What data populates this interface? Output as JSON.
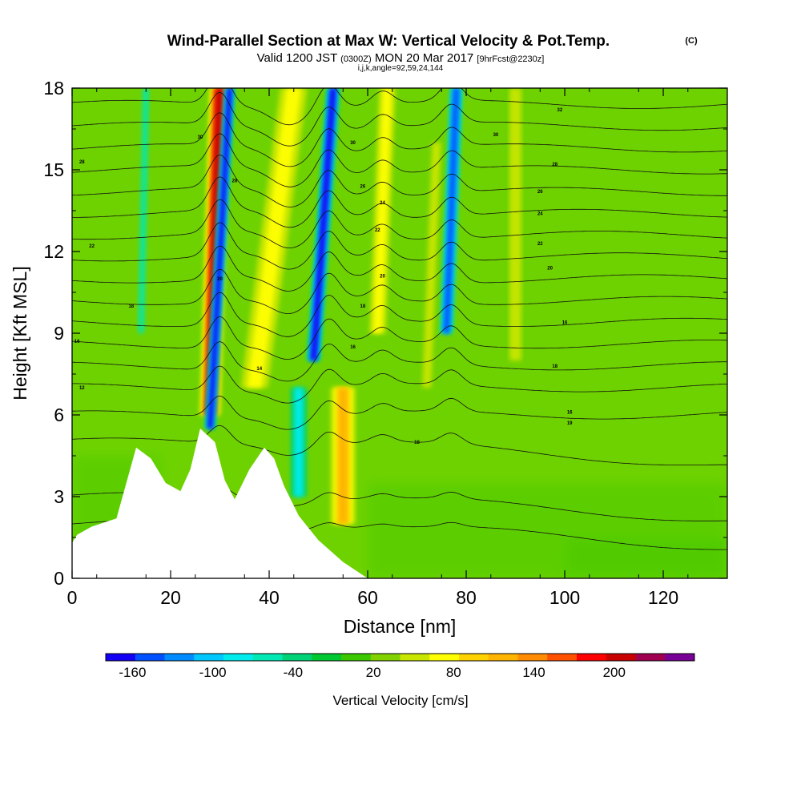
{
  "header": {
    "title": "Wind-Parallel Section at Max W: Vertical Velocity & Pot.Temp.",
    "copyright": "(C)",
    "subtitle_a": "Valid 1200 JST",
    "subtitle_b": "(0300Z)",
    "subtitle_c": "MON 20 Mar 2017",
    "subtitle_d": "[9hrFcst@2230z]",
    "indices": "i,j,k,angle=92,59,24,144"
  },
  "chart_data": {
    "type": "heatmap",
    "xlabel": "Distance [nm]",
    "ylabel": "Height [Kft MSL]",
    "xlim": [
      0,
      133
    ],
    "ylim": [
      0,
      18
    ],
    "xticks": [
      0,
      20,
      40,
      60,
      80,
      100,
      120
    ],
    "yticks": [
      0,
      3,
      6,
      9,
      12,
      15,
      18
    ],
    "grid": false,
    "colorbar": {
      "label": "Vertical Velocity [cm/s]",
      "ticks": [
        -160,
        -100,
        -40,
        20,
        80,
        140,
        200
      ],
      "range": [
        -180,
        260
      ],
      "colors": [
        "#1400f5",
        "#0050ff",
        "#008cff",
        "#00c8ff",
        "#00ecec",
        "#00e8b4",
        "#00d278",
        "#00c832",
        "#3cc800",
        "#82d200",
        "#c8e600",
        "#ffff00",
        "#ffd200",
        "#ffb400",
        "#ff8c00",
        "#ff5000",
        "#ff0000",
        "#c80000",
        "#a00050",
        "#780096"
      ]
    },
    "terrain": [
      [
        0,
        1.3
      ],
      [
        1,
        1.6
      ],
      [
        4,
        1.9
      ],
      [
        9,
        2.2
      ],
      [
        11,
        3.5
      ],
      [
        13,
        4.8
      ],
      [
        16,
        4.4
      ],
      [
        19,
        3.5
      ],
      [
        22,
        3.2
      ],
      [
        24,
        4.0
      ],
      [
        26,
        5.5
      ],
      [
        29,
        5.0
      ],
      [
        31,
        3.6
      ],
      [
        33,
        2.9
      ],
      [
        36,
        4.0
      ],
      [
        39,
        4.8
      ],
      [
        41,
        4.4
      ],
      [
        43,
        3.4
      ],
      [
        46,
        2.3
      ],
      [
        50,
        1.4
      ],
      [
        55,
        0.6
      ],
      [
        60,
        0.0
      ],
      [
        133,
        0.0
      ]
    ],
    "updrafts": [
      {
        "x0": 30,
        "y0": 18,
        "x1": 28,
        "y1": 6,
        "w": 3.0,
        "value": 200
      },
      {
        "x0": 45,
        "y0": 18,
        "x1": 37,
        "y1": 7,
        "w": 5.0,
        "value": 80
      },
      {
        "x0": 55,
        "y0": 7,
        "x1": 55,
        "y1": 2,
        "w": 4.0,
        "value": 120
      },
      {
        "x0": 64,
        "y0": 18,
        "x1": 62,
        "y1": 9,
        "w": 3.0,
        "value": 80
      },
      {
        "x0": 74,
        "y0": 16,
        "x1": 72,
        "y1": 7,
        "w": 3.0,
        "value": 60
      },
      {
        "x0": 90,
        "y0": 18,
        "x1": 90,
        "y1": 8,
        "w": 4.0,
        "value": 40
      }
    ],
    "downdrafts": [
      {
        "x0": 32,
        "y0": 18,
        "x1": 28,
        "y1": 5.5,
        "w": 1.5,
        "value": -160
      },
      {
        "x0": 53,
        "y0": 18,
        "x1": 49,
        "y1": 8,
        "w": 2.0,
        "value": -160
      },
      {
        "x0": 78,
        "y0": 18,
        "x1": 76,
        "y1": 9,
        "w": 2.0,
        "value": -140
      },
      {
        "x0": 15,
        "y0": 18,
        "x1": 14,
        "y1": 9,
        "w": 2.0,
        "value": -60
      },
      {
        "x0": 46,
        "y0": 7,
        "x1": 46,
        "y1": 3,
        "w": 3.0,
        "value": -80
      }
    ],
    "isentropes": {
      "levels_kft": [
        2.0,
        3.0,
        5.0,
        6.0,
        7.0,
        7.8,
        8.6,
        9.4,
        10.2,
        11.0,
        11.8,
        12.6,
        13.4,
        14.2,
        15.0,
        15.8,
        16.6,
        17.4
      ],
      "labels": [
        {
          "text": "18",
          "x": 70,
          "y": 5.0
        },
        {
          "text": "19",
          "x": 101,
          "y": 5.7
        },
        {
          "text": "16",
          "x": 101,
          "y": 6.1
        },
        {
          "text": "12",
          "x": 2,
          "y": 7.0
        },
        {
          "text": "14",
          "x": 38,
          "y": 7.7
        },
        {
          "text": "18",
          "x": 98,
          "y": 7.8
        },
        {
          "text": "16",
          "x": 1,
          "y": 8.7
        },
        {
          "text": "16",
          "x": 57,
          "y": 8.5
        },
        {
          "text": "16",
          "x": 100,
          "y": 9.4
        },
        {
          "text": "18",
          "x": 12,
          "y": 10.0
        },
        {
          "text": "18",
          "x": 59,
          "y": 10.0
        },
        {
          "text": "20",
          "x": 30,
          "y": 11.0
        },
        {
          "text": "20",
          "x": 63,
          "y": 11.1
        },
        {
          "text": "20",
          "x": 97,
          "y": 11.4
        },
        {
          "text": "22",
          "x": 4,
          "y": 12.2
        },
        {
          "text": "22",
          "x": 62,
          "y": 12.8
        },
        {
          "text": "22",
          "x": 95,
          "y": 12.3
        },
        {
          "text": "24",
          "x": 95,
          "y": 13.4
        },
        {
          "text": "24",
          "x": 63,
          "y": 13.8
        },
        {
          "text": "26",
          "x": 59,
          "y": 14.4
        },
        {
          "text": "26",
          "x": 95,
          "y": 14.2
        },
        {
          "text": "28",
          "x": 33,
          "y": 14.6
        },
        {
          "text": "28",
          "x": 2,
          "y": 15.3
        },
        {
          "text": "28",
          "x": 98,
          "y": 15.2
        },
        {
          "text": "30",
          "x": 57,
          "y": 16.0
        },
        {
          "text": "30",
          "x": 26,
          "y": 16.2
        },
        {
          "text": "30",
          "x": 86,
          "y": 16.3
        },
        {
          "text": "32",
          "x": 99,
          "y": 17.2
        }
      ]
    }
  }
}
